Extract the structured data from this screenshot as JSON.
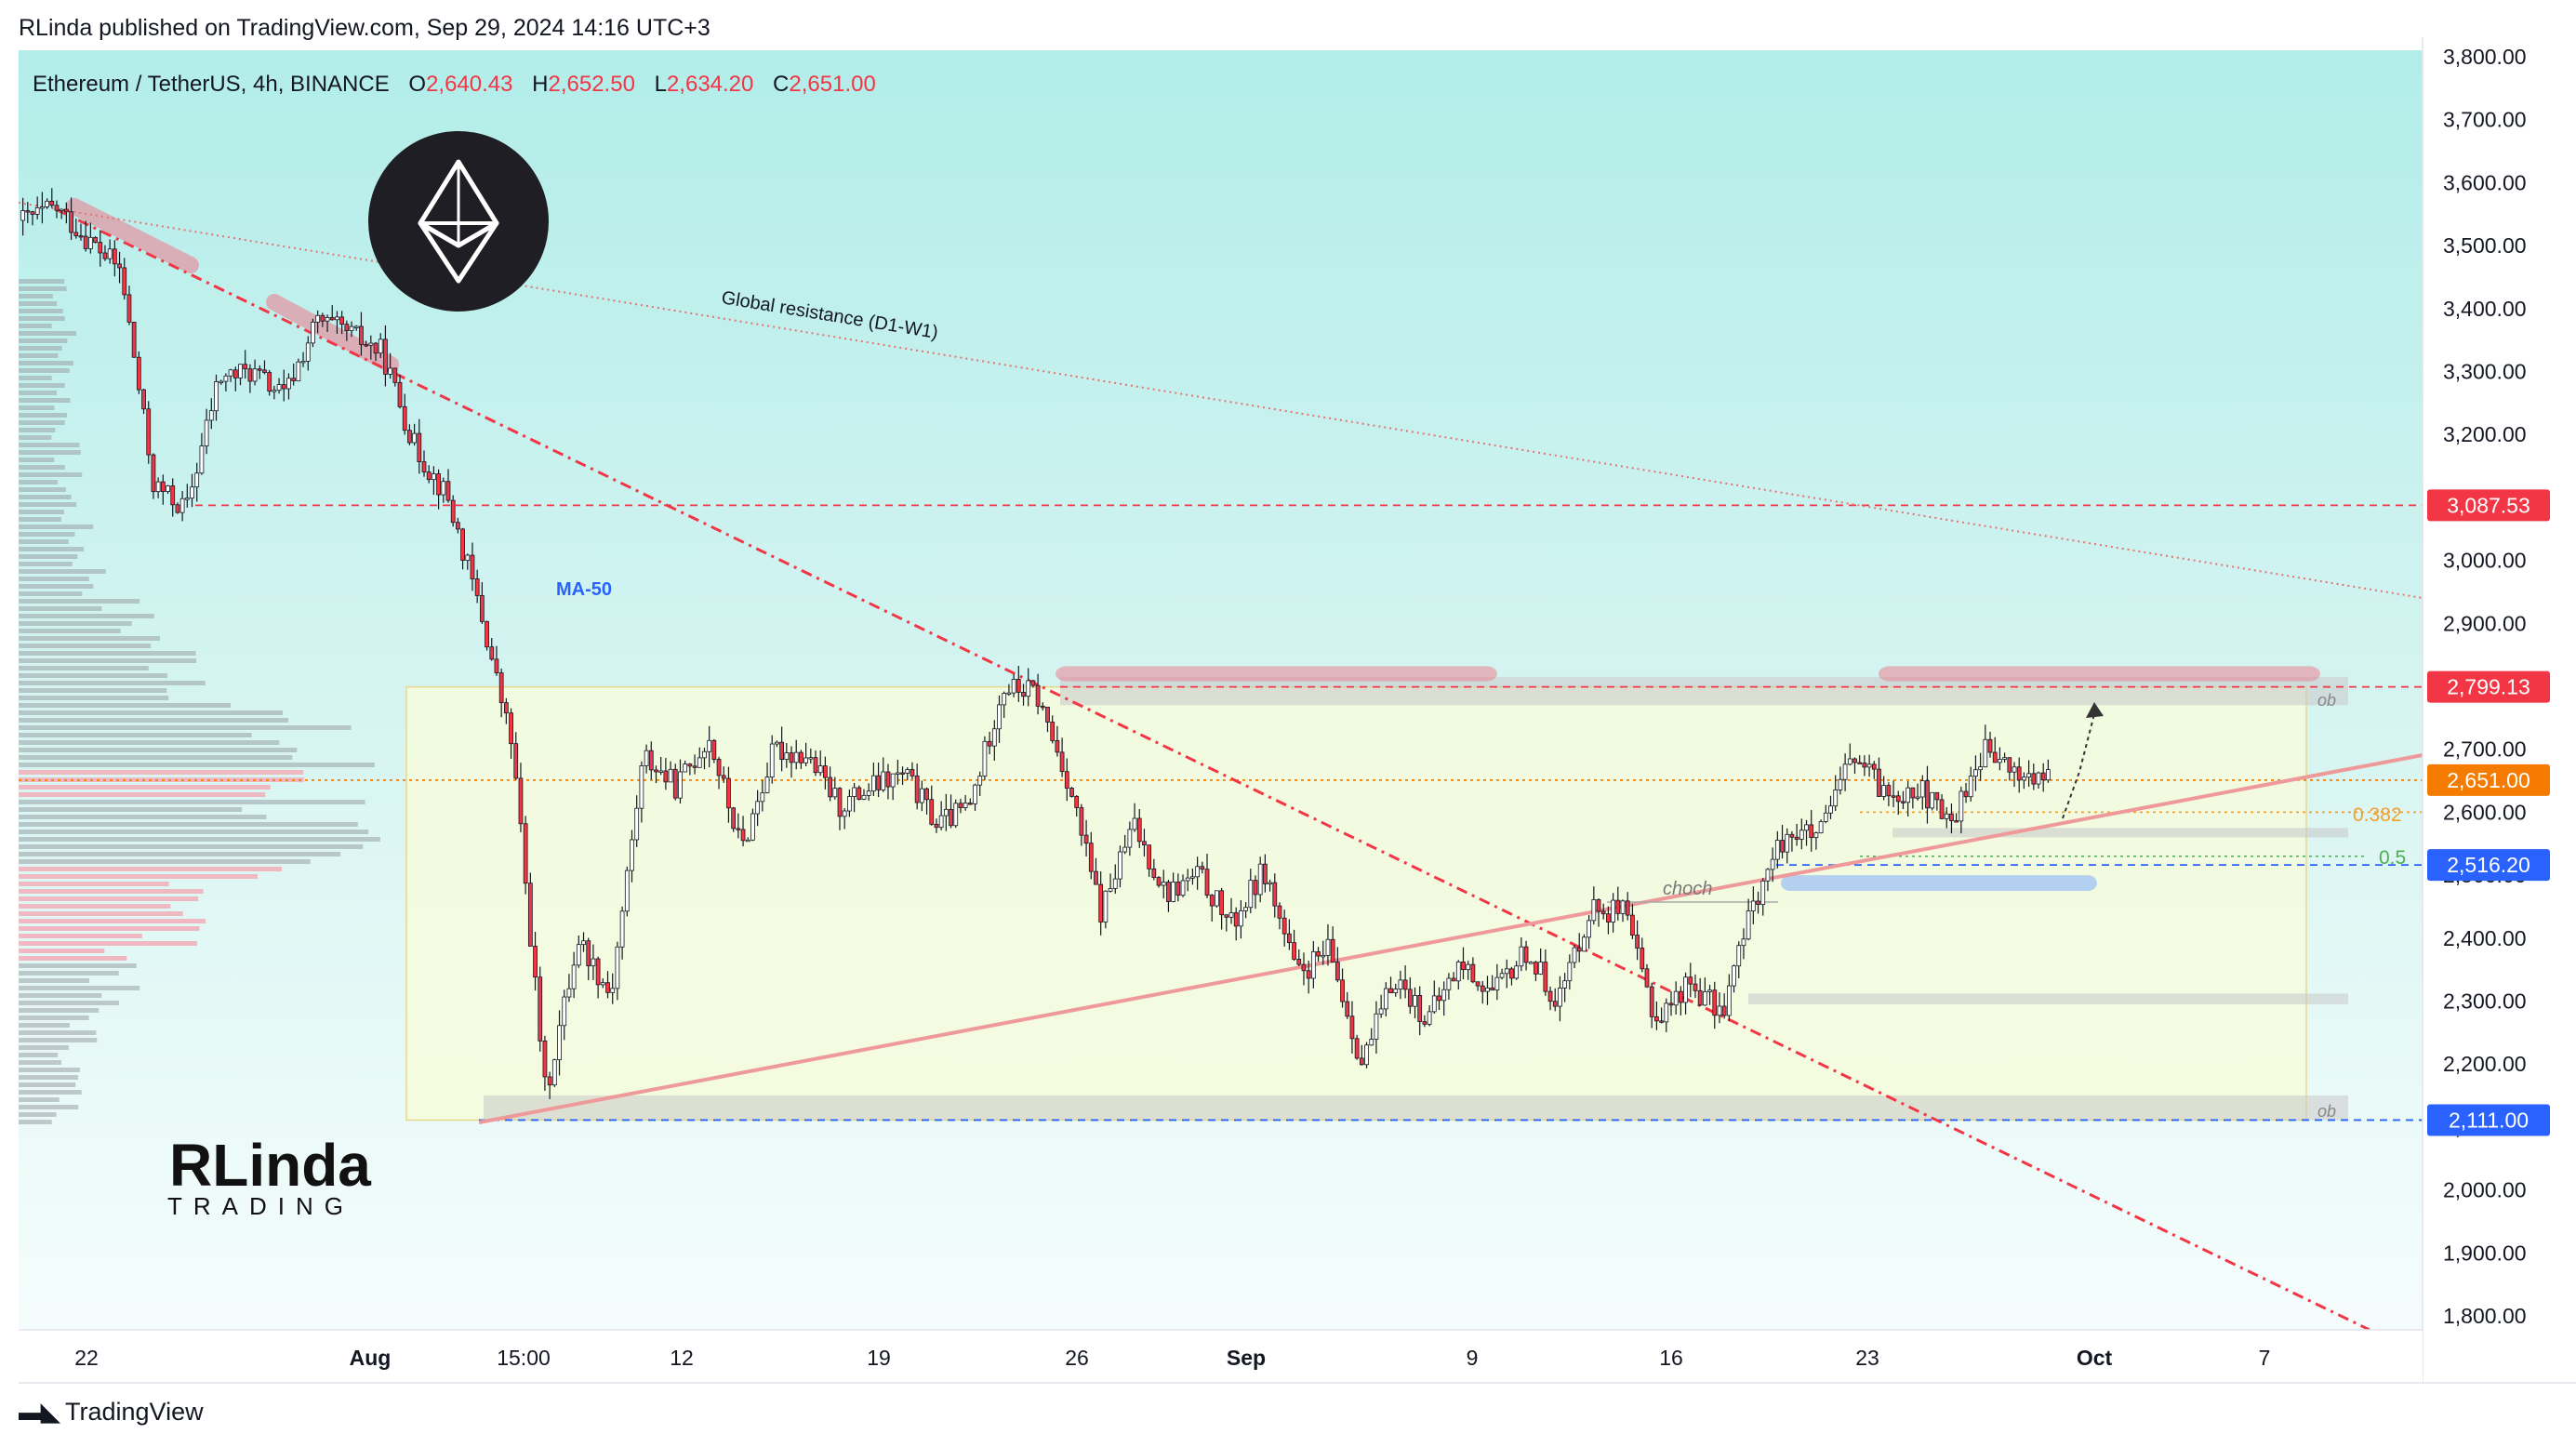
{
  "header": {
    "published_line": "RLinda published on TradingView.com, Sep 29, 2024 14:16 UTC+3"
  },
  "legend": {
    "symbol": "Ethereum / TetherUS, 4h, BINANCE",
    "o_label": "O",
    "o_value": "2,640.43",
    "h_label": "H",
    "h_value": "2,652.50",
    "l_label": "L",
    "l_value": "2,634.20",
    "c_label": "C",
    "c_value": "2,651.00"
  },
  "colors": {
    "up": "#089981",
    "down": "#f23645",
    "candle_up": "#ffffff",
    "candle_down": "#f23645",
    "accent_red": "#f23645",
    "accent_orange": "#f57c00",
    "accent_blue": "#2962ff"
  },
  "annotations": {
    "global_resistance": "Global resistance (D1-W1)",
    "ma50": "MA-50",
    "choch": "choch",
    "fib_0382": "0.382",
    "fib_05": "0.5",
    "ob_top": "ob",
    "ob_bottom": "ob"
  },
  "branding": {
    "rlinda_name": "RLinda",
    "rlinda_sub": "TRADING",
    "footer_logo_text": "TradingView",
    "coin_icon": "ethereum-icon"
  },
  "chart_data": {
    "type": "candlestick",
    "symbol": "ETHUSDT",
    "timeframe": "4h",
    "exchange": "BINANCE",
    "ylim": [
      1780,
      3820
    ],
    "y_ticks": [
      1800,
      1900,
      2000,
      2100,
      2200,
      2300,
      2400,
      2500,
      2600,
      2700,
      2800,
      2900,
      3000,
      3100,
      3200,
      3300,
      3400,
      3500,
      3600,
      3700,
      3800
    ],
    "x_ticks": [
      "22",
      "Aug",
      "15:00",
      "12",
      "19",
      "26",
      "Sep",
      "9",
      "16",
      "23",
      "Oct",
      "7"
    ],
    "price_labels": [
      {
        "value": 3087.53,
        "text": "3,087.53",
        "color": "#f23645"
      },
      {
        "value": 2799.13,
        "text": "2,799.13",
        "color": "#f23645"
      },
      {
        "value": 2651.0,
        "text": "2,651.00",
        "color": "#f57c00"
      },
      {
        "value": 2516.2,
        "text": "2,516.20",
        "color": "#2962ff"
      },
      {
        "value": 2111.0,
        "text": "2,111.00",
        "color": "#2962ff"
      }
    ],
    "horizontal_levels": [
      3087.53,
      2799.13,
      2651.0,
      2600.0,
      2516.2,
      2111.0
    ],
    "fib_levels": [
      {
        "label": "0.382",
        "value": 2600
      },
      {
        "label": "0.5",
        "value": 2530
      }
    ],
    "range_box": {
      "low": 2111,
      "high": 2799
    },
    "path": [
      3540,
      3560,
      3510,
      3460,
      3120,
      3080,
      3290,
      3300,
      3260,
      3380,
      3360,
      3330,
      3180,
      3100,
      2920,
      2700,
      2150,
      2400,
      2310,
      2690,
      2640,
      2720,
      2540,
      2700,
      2690,
      2610,
      2640,
      2660,
      2580,
      2610,
      2800,
      2790,
      2650,
      2440,
      2580,
      2470,
      2500,
      2420,
      2510,
      2340,
      2380,
      2200,
      2340,
      2270,
      2360,
      2310,
      2380,
      2300,
      2450,
      2440,
      2270,
      2330,
      2280,
      2460,
      2570,
      2560,
      2690,
      2630,
      2640,
      2580,
      2700,
      2660,
      2651
    ]
  }
}
